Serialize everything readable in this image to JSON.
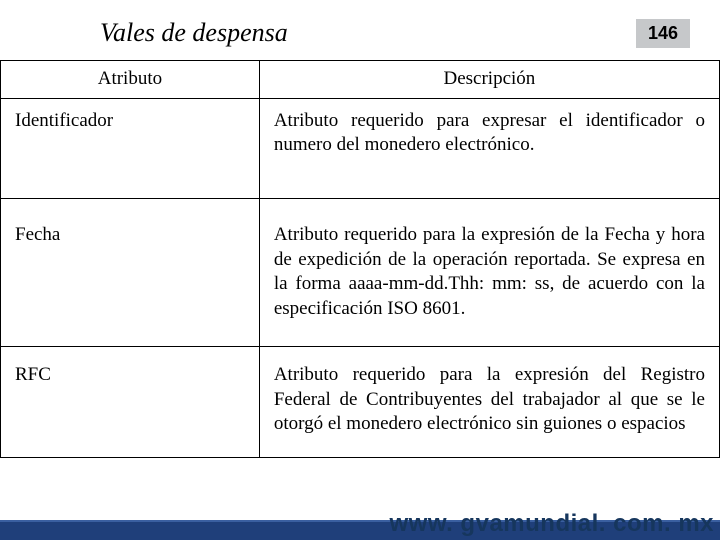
{
  "header": {
    "title": "Vales de despensa",
    "page_number": "146"
  },
  "table": {
    "columns": [
      "Atributo",
      "Descripción"
    ],
    "rows": [
      {
        "attribute": "Identificador",
        "description": "Atributo requerido para expresar el identificador o numero del monedero electrónico."
      },
      {
        "attribute": "Fecha",
        "description": "Atributo requerido para la expresión de la Fecha y hora de expedición de la operación reportada. Se expresa en la forma aaaa-mm-dd.Thh: mm: ss, de acuerdo con la especificación ISO 8601."
      },
      {
        "attribute": "RFC",
        "description": "Atributo requerido para la expresión del Registro Federal de Contribuyentes del trabajador al que se le otorgó el monedero electrónico sin guiones o espacios"
      }
    ]
  },
  "footer": {
    "url": "www. gvamundial. com. mx"
  },
  "styling": {
    "page_badge_bg": "#c6c8ca",
    "footer_bar_color": "#1f3f7a",
    "footer_text_color": "#16365d",
    "border_color": "#000000",
    "background": "#ffffff"
  }
}
